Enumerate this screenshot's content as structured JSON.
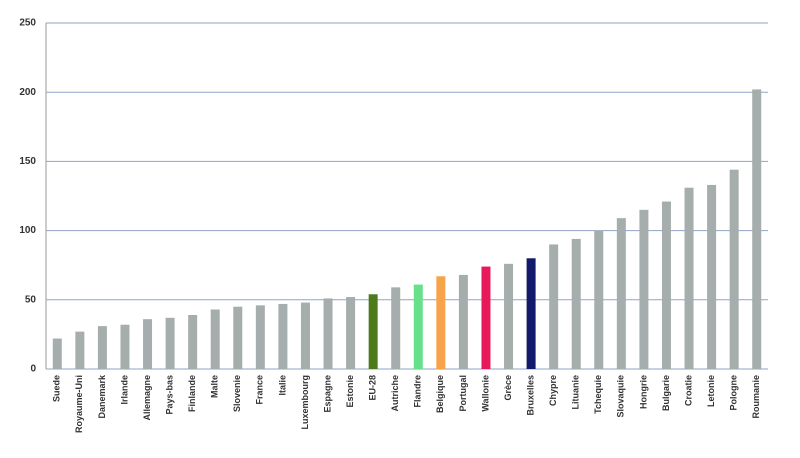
{
  "chart_data": {
    "type": "bar",
    "categories": [
      "Suede",
      "Royaume-Uni",
      "Danemark",
      "Irlande",
      "Allemagne",
      "Pays-bas",
      "Finlande",
      "Malte",
      "Slovenie",
      "France",
      "Italie",
      "Luxembourg",
      "Espagne",
      "Estonie",
      "EU-28",
      "Autriche",
      "Flandre",
      "Belgique",
      "Portugal",
      "Wallonie",
      "Grèce",
      "Bruxelles",
      "Chypre",
      "Lituanie",
      "Tchequie",
      "Slovaquie",
      "Hongrie",
      "Bulgarie",
      "Croatie",
      "Letonie",
      "Pologne",
      "Roumanie"
    ],
    "values": [
      22,
      27,
      31,
      32,
      36,
      37,
      39,
      43,
      45,
      46,
      47,
      48,
      51,
      52,
      54,
      59,
      61,
      67,
      68,
      74,
      76,
      80,
      90,
      94,
      100,
      109,
      115,
      121,
      131,
      133,
      144,
      202
    ],
    "colors": [
      "#a5aeac",
      "#a5aeac",
      "#a5aeac",
      "#a5aeac",
      "#a5aeac",
      "#a5aeac",
      "#a5aeac",
      "#a5aeac",
      "#a5aeac",
      "#a5aeac",
      "#a5aeac",
      "#a5aeac",
      "#a5aeac",
      "#a5aeac",
      "#4d7a1a",
      "#a5aeac",
      "#66e08a",
      "#f7a34a",
      "#a5aeac",
      "#e8185a",
      "#a5aeac",
      "#141a6b",
      "#a5aeac",
      "#a5aeac",
      "#a5aeac",
      "#a5aeac",
      "#a5aeac",
      "#a5aeac",
      "#a5aeac",
      "#a5aeac",
      "#a5aeac",
      "#a5aeac"
    ],
    "ylim": [
      0,
      250
    ],
    "yticks": [
      0,
      50,
      100,
      150,
      200,
      250
    ],
    "grid": true
  }
}
